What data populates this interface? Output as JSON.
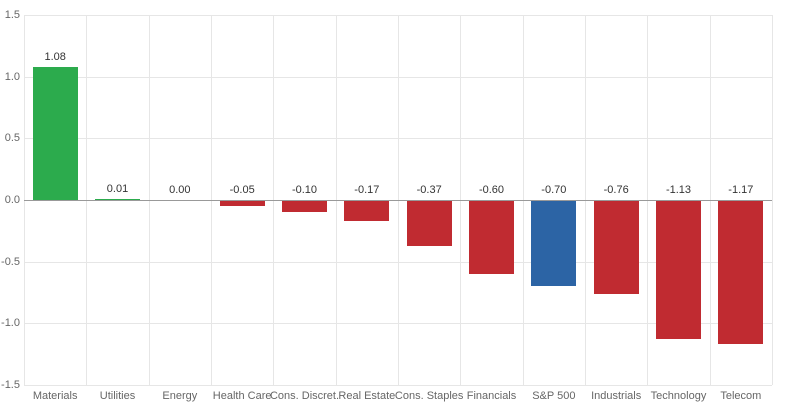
{
  "chart_data": {
    "type": "bar",
    "title": "",
    "xlabel": "",
    "ylabel": "",
    "ylim": [
      -1.5,
      1.5
    ],
    "yticks": [
      1.5,
      1.0,
      0.5,
      0.0,
      -0.5,
      -1.0,
      -1.5
    ],
    "grid": true,
    "legend": false,
    "categories": [
      "Materials",
      "Utilities",
      "Energy",
      "Health Care",
      "Cons. Discret.",
      "Real Estate",
      "Cons. Staples",
      "Financials",
      "S&P 500",
      "Industrials",
      "Technology",
      "Telecom"
    ],
    "values": [
      1.08,
      0.01,
      0.0,
      -0.05,
      -0.1,
      -0.17,
      -0.37,
      -0.6,
      -0.7,
      -0.76,
      -1.13,
      -1.17
    ],
    "value_labels": [
      "1.08",
      "0.01",
      "0.00",
      "-0.05",
      "-0.10",
      "-0.17",
      "-0.37",
      "-0.60",
      "-0.70",
      "-0.76",
      "-1.13",
      "-1.17"
    ],
    "bar_colors": [
      "green",
      "green",
      "green",
      "red",
      "red",
      "red",
      "red",
      "red",
      "blue",
      "red",
      "red",
      "red"
    ],
    "palette": {
      "green": "#2cab4d",
      "red": "#c02b31",
      "blue": "#2c64a5"
    },
    "axis_colors": {
      "gridline": "#e6e6e6",
      "zero_line": "#999999",
      "tick_label": "#666666",
      "value_label": "#333333",
      "category_label": "#666666"
    }
  }
}
